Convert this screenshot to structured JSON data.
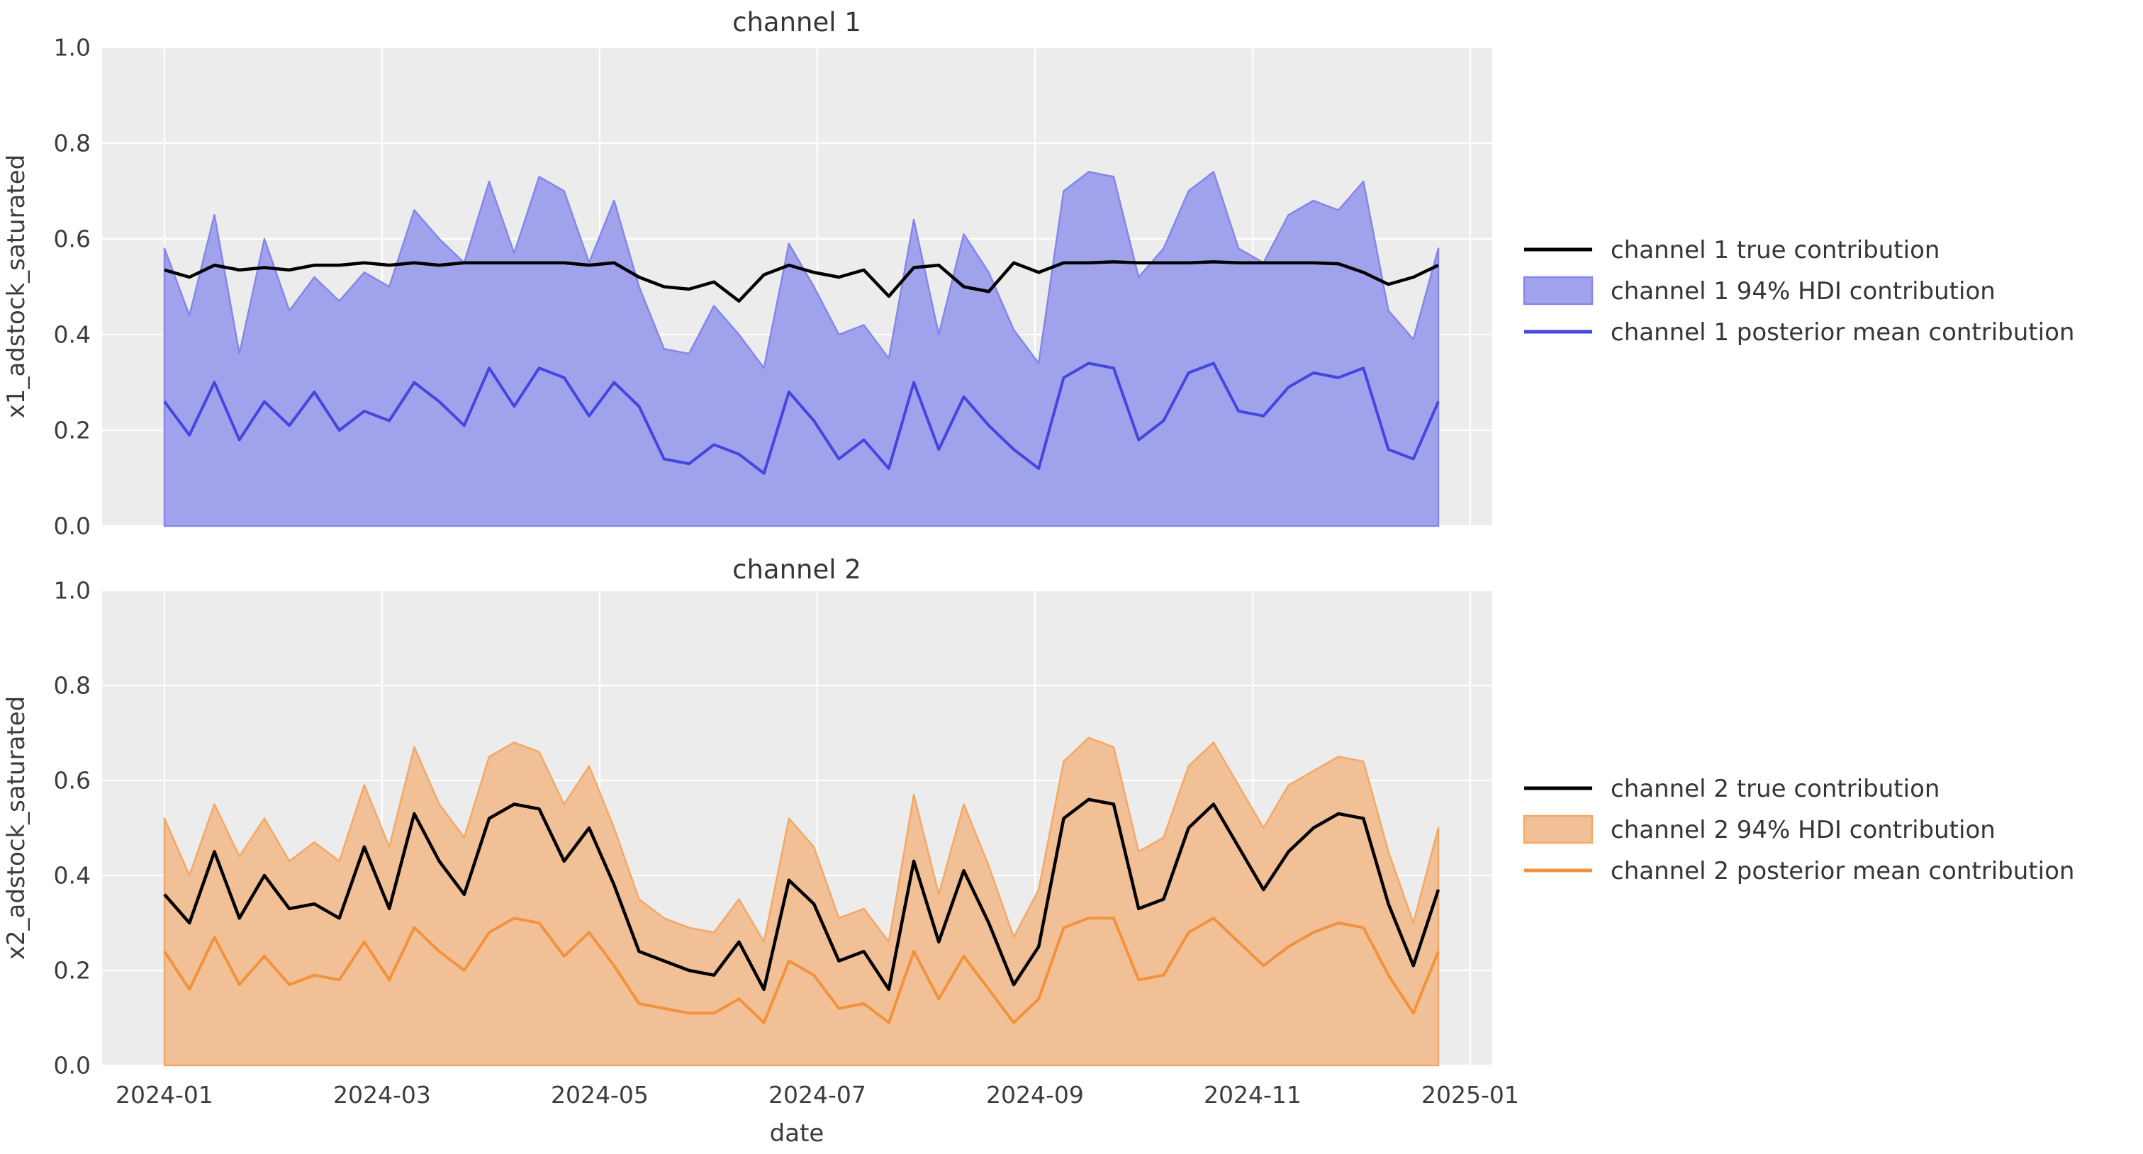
{
  "figure": {
    "background": "#ffffff",
    "axes_background": "#ececec",
    "grid_color": "#ffffff"
  },
  "xaxis": {
    "label": "date",
    "ticks": [
      "2024-01",
      "2024-03",
      "2024-05",
      "2024-07",
      "2024-09",
      "2024-11",
      "2025-01"
    ]
  },
  "charts": [
    {
      "title": "channel 1",
      "ylabel": "x1_adstock_saturated",
      "yticks": [
        "1.0",
        "0.8",
        "0.6",
        "0.4",
        "0.2",
        "0.0"
      ],
      "legend": [
        {
          "label": "channel 1 true contribution",
          "swatch": "line",
          "color": "#000000"
        },
        {
          "label": "channel 1 94% HDI contribution",
          "swatch": "patch",
          "color": "#a0a3ec"
        },
        {
          "label": "channel 1 posterior mean contribution",
          "swatch": "line",
          "color": "#4446df"
        }
      ]
    },
    {
      "title": "channel 2",
      "ylabel": "x2_adstock_saturated",
      "yticks": [
        "1.0",
        "0.8",
        "0.6",
        "0.4",
        "0.2",
        "0.0"
      ],
      "legend": [
        {
          "label": "channel 2 true contribution",
          "swatch": "line",
          "color": "#000000"
        },
        {
          "label": "channel 2 94% HDI contribution",
          "swatch": "patch",
          "color": "#f2c096"
        },
        {
          "label": "channel 2 posterior mean contribution",
          "swatch": "line",
          "color": "#f3923c"
        }
      ]
    }
  ],
  "chart_data": [
    {
      "type": "line",
      "title": "channel 1",
      "xlabel": "date",
      "ylabel": "x1_adstock_saturated",
      "x_start": "2024-01-01",
      "x_step_days": 7,
      "n_points": 52,
      "x_tick_labels": [
        "2024-01",
        "2024-03",
        "2024-05",
        "2024-07",
        "2024-09",
        "2024-11",
        "2025-01"
      ],
      "ylim": [
        0.0,
        1.0
      ],
      "grid": true,
      "legend_position": "right of axes",
      "hdi_lower_constant": 0.0,
      "series": [
        {
          "name": "channel 1 true contribution",
          "style": "solid line",
          "color": "#000000",
          "values": [
            0.535,
            0.52,
            0.545,
            0.535,
            0.54,
            0.535,
            0.545,
            0.545,
            0.55,
            0.545,
            0.55,
            0.545,
            0.55,
            0.55,
            0.55,
            0.55,
            0.55,
            0.545,
            0.55,
            0.52,
            0.5,
            0.495,
            0.51,
            0.47,
            0.525,
            0.545,
            0.53,
            0.52,
            0.535,
            0.48,
            0.54,
            0.545,
            0.5,
            0.49,
            0.55,
            0.53,
            0.55,
            0.55,
            0.552,
            0.55,
            0.55,
            0.55,
            0.552,
            0.55,
            0.55,
            0.55,
            0.55,
            0.548,
            0.53,
            0.505,
            0.52,
            0.545
          ]
        },
        {
          "name": "channel 1 posterior mean contribution",
          "style": "solid line",
          "color": "#4446df",
          "values": [
            0.26,
            0.19,
            0.3,
            0.18,
            0.26,
            0.21,
            0.28,
            0.2,
            0.24,
            0.22,
            0.3,
            0.26,
            0.21,
            0.33,
            0.25,
            0.33,
            0.31,
            0.23,
            0.3,
            0.25,
            0.14,
            0.13,
            0.17,
            0.15,
            0.11,
            0.28,
            0.22,
            0.14,
            0.18,
            0.12,
            0.3,
            0.16,
            0.27,
            0.21,
            0.16,
            0.12,
            0.31,
            0.34,
            0.33,
            0.18,
            0.22,
            0.32,
            0.34,
            0.24,
            0.23,
            0.29,
            0.32,
            0.31,
            0.33,
            0.16,
            0.14,
            0.26
          ]
        },
        {
          "name": "channel 1 94% HDI contribution (upper bound)",
          "style": "filled band from 0",
          "fill_color": "#a0a3ec",
          "edge_color": "#8486ea",
          "values": [
            0.58,
            0.44,
            0.65,
            0.36,
            0.6,
            0.45,
            0.52,
            0.47,
            0.53,
            0.5,
            0.66,
            0.6,
            0.55,
            0.72,
            0.57,
            0.73,
            0.7,
            0.55,
            0.68,
            0.5,
            0.37,
            0.36,
            0.46,
            0.4,
            0.33,
            0.59,
            0.5,
            0.4,
            0.42,
            0.35,
            0.64,
            0.4,
            0.61,
            0.53,
            0.41,
            0.34,
            0.7,
            0.74,
            0.73,
            0.52,
            0.58,
            0.7,
            0.74,
            0.58,
            0.55,
            0.65,
            0.68,
            0.66,
            0.72,
            0.45,
            0.39,
            0.58
          ]
        }
      ]
    },
    {
      "type": "line",
      "title": "channel 2",
      "xlabel": "date",
      "ylabel": "x2_adstock_saturated",
      "x_start": "2024-01-01",
      "x_step_days": 7,
      "n_points": 52,
      "x_tick_labels": [
        "2024-01",
        "2024-03",
        "2024-05",
        "2024-07",
        "2024-09",
        "2024-11",
        "2025-01"
      ],
      "ylim": [
        0.0,
        1.0
      ],
      "grid": true,
      "legend_position": "right of axes",
      "hdi_lower_constant": 0.0,
      "series": [
        {
          "name": "channel 2 true contribution",
          "style": "solid line",
          "color": "#000000",
          "values": [
            0.36,
            0.3,
            0.45,
            0.31,
            0.4,
            0.33,
            0.34,
            0.31,
            0.46,
            0.33,
            0.53,
            0.43,
            0.36,
            0.52,
            0.55,
            0.54,
            0.43,
            0.5,
            0.38,
            0.24,
            0.22,
            0.2,
            0.19,
            0.26,
            0.16,
            0.39,
            0.34,
            0.22,
            0.24,
            0.16,
            0.43,
            0.26,
            0.41,
            0.3,
            0.17,
            0.25,
            0.52,
            0.56,
            0.55,
            0.33,
            0.35,
            0.5,
            0.55,
            0.46,
            0.37,
            0.45,
            0.5,
            0.53,
            0.52,
            0.34,
            0.21,
            0.37
          ]
        },
        {
          "name": "channel 2 posterior mean contribution",
          "style": "solid line",
          "color": "#f3923c",
          "values": [
            0.24,
            0.16,
            0.27,
            0.17,
            0.23,
            0.17,
            0.19,
            0.18,
            0.26,
            0.18,
            0.29,
            0.24,
            0.2,
            0.28,
            0.31,
            0.3,
            0.23,
            0.28,
            0.21,
            0.13,
            0.12,
            0.11,
            0.11,
            0.14,
            0.09,
            0.22,
            0.19,
            0.12,
            0.13,
            0.09,
            0.24,
            0.14,
            0.23,
            0.16,
            0.09,
            0.14,
            0.29,
            0.31,
            0.31,
            0.18,
            0.19,
            0.28,
            0.31,
            0.26,
            0.21,
            0.25,
            0.28,
            0.3,
            0.29,
            0.19,
            0.11,
            0.24
          ]
        },
        {
          "name": "channel 2 94% HDI contribution (upper bound)",
          "style": "filled band from 0",
          "fill_color": "#f2c096",
          "edge_color": "#f3a866",
          "values": [
            0.52,
            0.4,
            0.55,
            0.44,
            0.52,
            0.43,
            0.47,
            0.43,
            0.59,
            0.46,
            0.67,
            0.55,
            0.48,
            0.65,
            0.68,
            0.66,
            0.55,
            0.63,
            0.5,
            0.35,
            0.31,
            0.29,
            0.28,
            0.35,
            0.26,
            0.52,
            0.46,
            0.31,
            0.33,
            0.26,
            0.57,
            0.36,
            0.55,
            0.42,
            0.27,
            0.37,
            0.64,
            0.69,
            0.67,
            0.45,
            0.48,
            0.63,
            0.68,
            0.59,
            0.5,
            0.59,
            0.62,
            0.65,
            0.64,
            0.45,
            0.3,
            0.5
          ]
        }
      ]
    }
  ]
}
